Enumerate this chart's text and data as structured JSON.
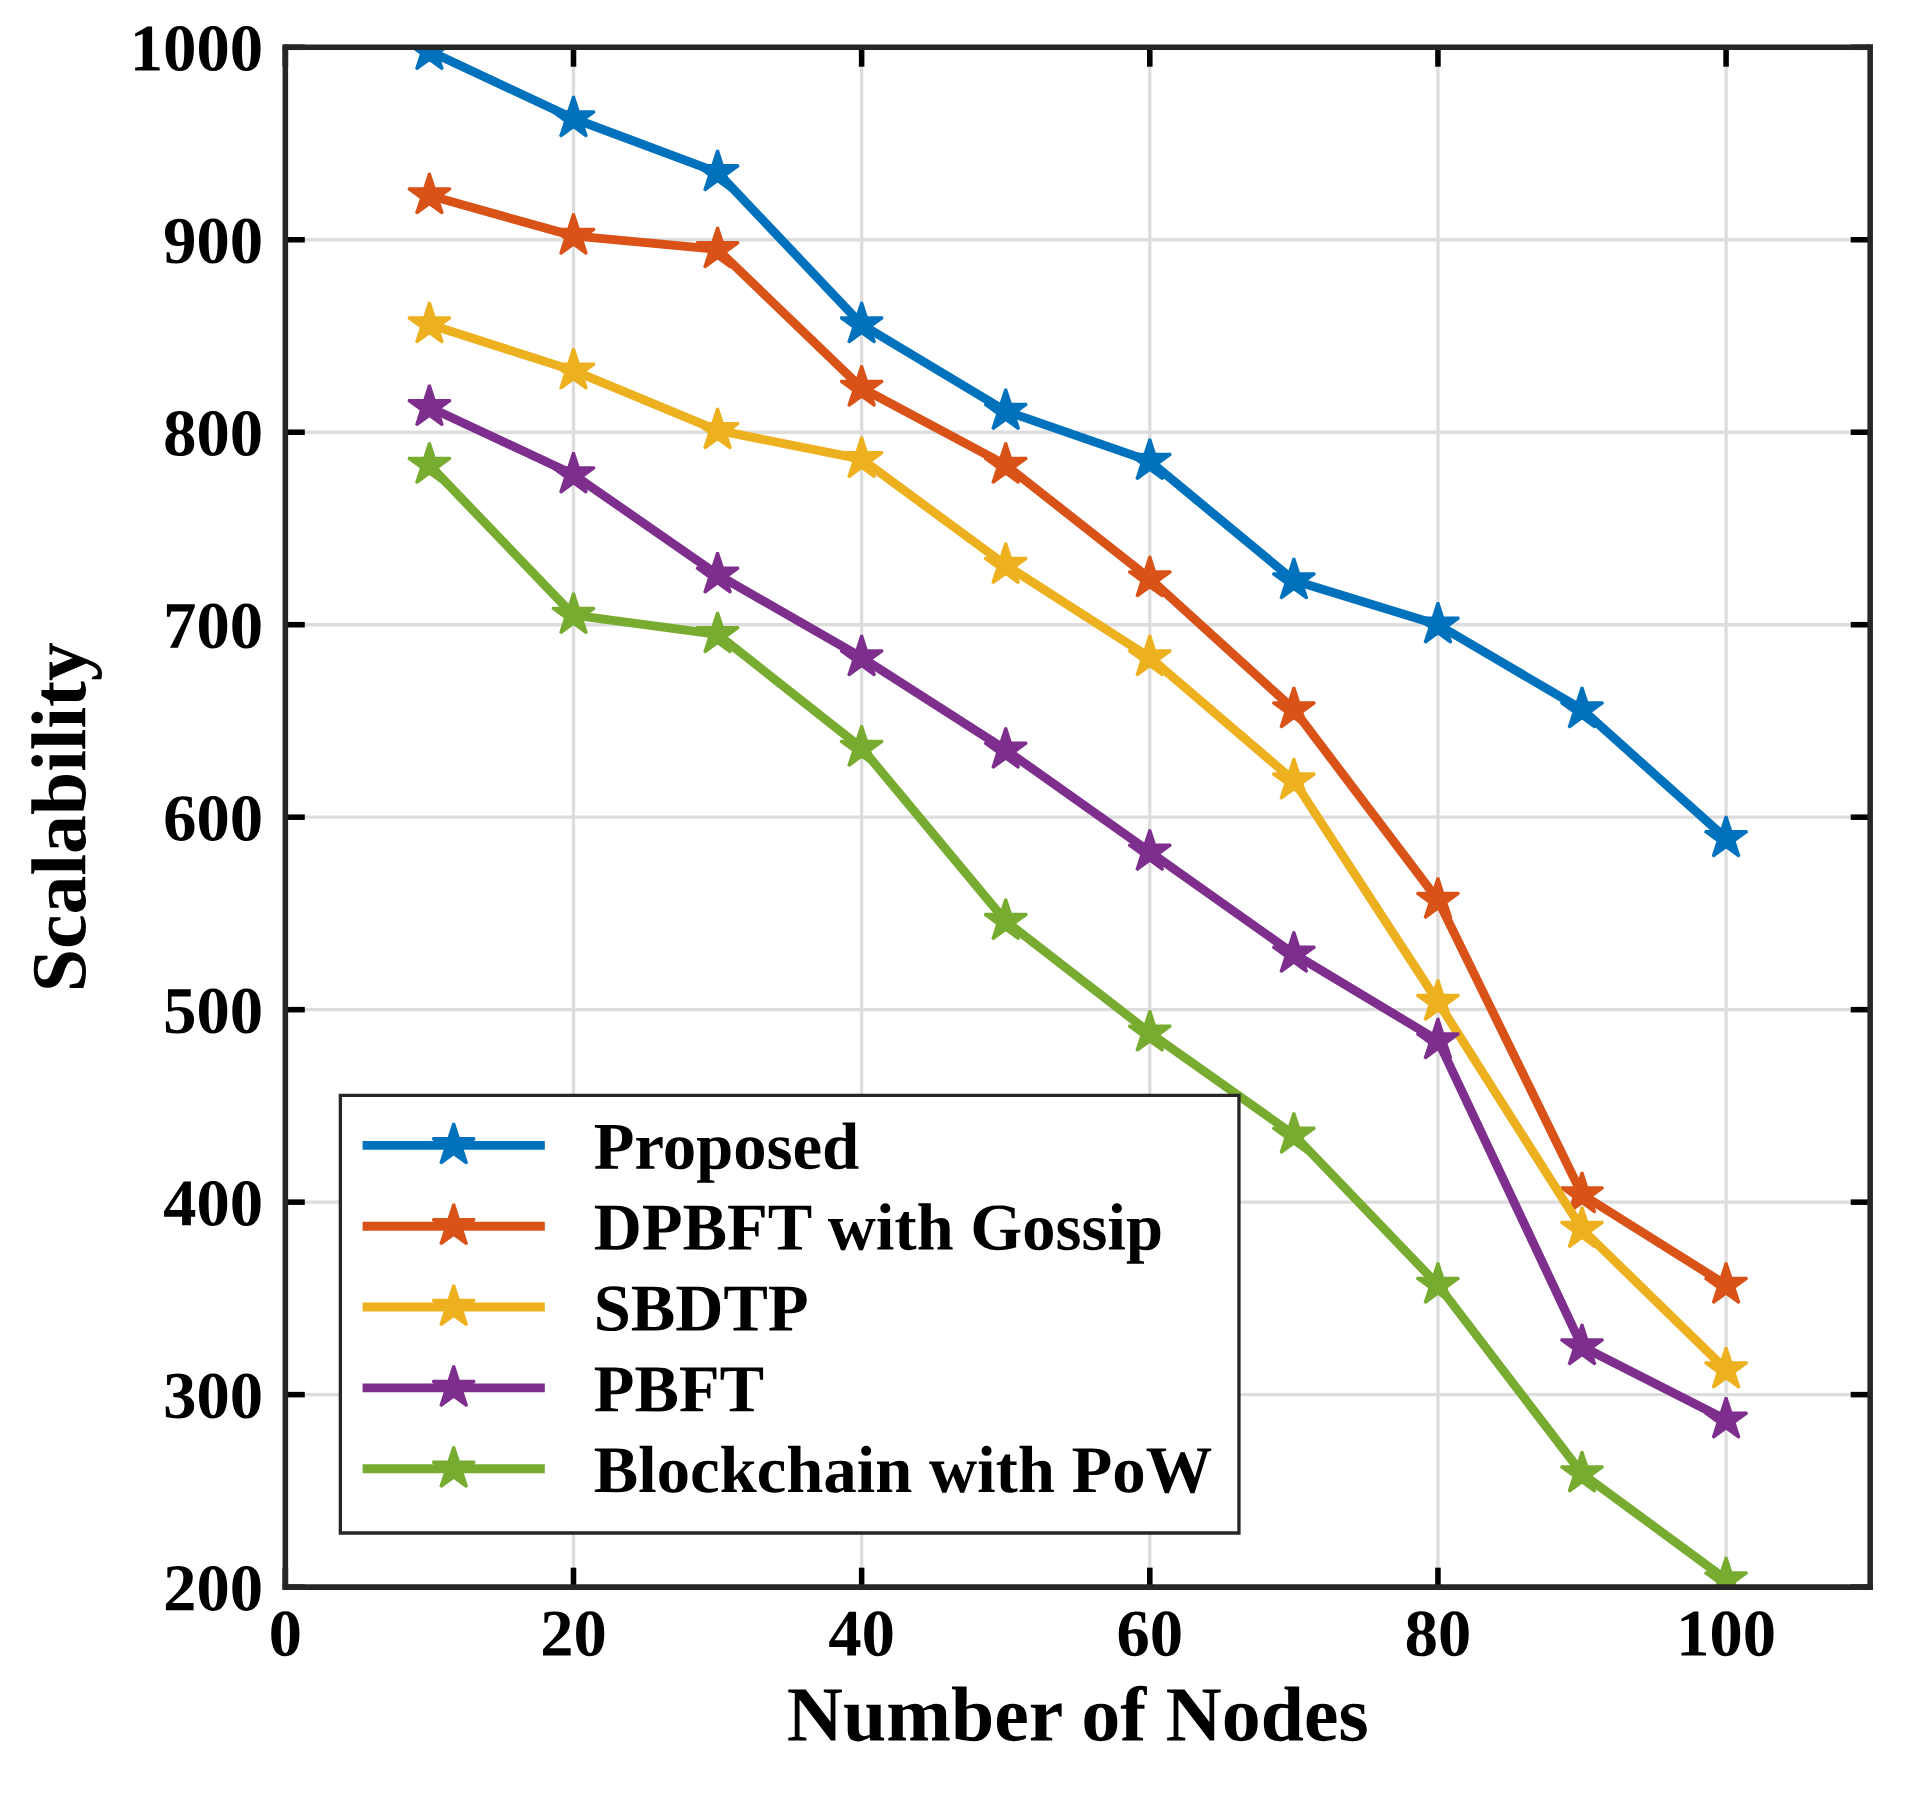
{
  "chart_data": {
    "type": "line",
    "xlabel": "Number of Nodes",
    "ylabel": "Scalability",
    "x": [
      10,
      20,
      30,
      40,
      50,
      60,
      70,
      80,
      90,
      100
    ],
    "series": [
      {
        "name": "Proposed",
        "color": "#0072bd",
        "values": [
          998,
          963,
          935,
          856,
          811,
          785,
          723,
          700,
          656,
          589
        ]
      },
      {
        "name": "DPBFT with Gossip",
        "color": "#d95319",
        "values": [
          923,
          902,
          895,
          823,
          783,
          724,
          656,
          557,
          404,
          357
        ]
      },
      {
        "name": "SBDTP",
        "color": "#edb120",
        "values": [
          856,
          832,
          801,
          786,
          731,
          683,
          619,
          504,
          386,
          313
        ]
      },
      {
        "name": "PBFT",
        "color": "#7e2f8e",
        "values": [
          813,
          778,
          726,
          683,
          635,
          582,
          529,
          484,
          325,
          287
        ]
      },
      {
        "name": "Blockchain with PoW",
        "color": "#77ac30",
        "values": [
          783,
          705,
          695,
          636,
          546,
          488,
          435,
          357,
          259,
          204
        ]
      }
    ],
    "xlim": [
      0,
      110
    ],
    "xticks": [
      0,
      20,
      40,
      60,
      80,
      100
    ],
    "ylim": [
      200,
      1000
    ],
    "yticks": [
      200,
      300,
      400,
      500,
      600,
      700,
      800,
      900,
      1000
    ],
    "grid": true,
    "legend": "bottom left",
    "marker": "star",
    "line_style": "solid"
  }
}
